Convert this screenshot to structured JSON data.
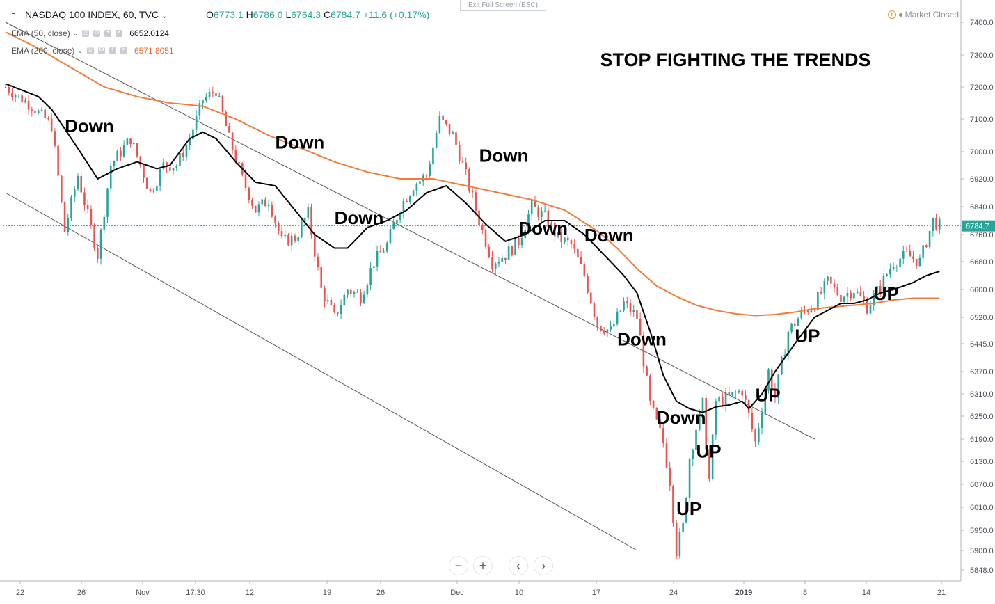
{
  "header": {
    "symbol": "NASDAQ 100 INDEX, 60, TVC",
    "open_label": "O",
    "open": "6773.1",
    "high_label": "H",
    "high": "6786.0",
    "low_label": "L",
    "low": "6764.3",
    "close_label": "C",
    "close": "6784.7",
    "change": "+11.6 (+0.17%)",
    "exit_fullscreen": "Exit Full Screen (ESC)",
    "market_status": "Market Closed"
  },
  "indicators": [
    {
      "label": "EMA (50, close)",
      "value": "6652.0124",
      "color": "#000000"
    },
    {
      "label": "EMA (200, close)",
      "value": "6571.8051",
      "color": "#f06a2e"
    }
  ],
  "colors": {
    "up": "#26a69a",
    "down": "#ef5350",
    "ema50": "#000000",
    "ema200": "#f47b3a",
    "price_line": "#26a69a"
  },
  "chart_data": {
    "type": "candlestick",
    "title": "STOP FIGHTING THE TRENDS",
    "y_ticks": [
      7400.0,
      7300.0,
      7200.0,
      7100.0,
      7000.0,
      6920.0,
      6840.0,
      6760.0,
      6680.0,
      6600.0,
      6520.0,
      6445.0,
      6370.0,
      6310.0,
      6250.0,
      6190.0,
      6130.0,
      6070.0,
      6010.0,
      5950.0,
      5900.0,
      5848.0
    ],
    "y_tick_labels": [
      "7400.0",
      "7300.0",
      "7200.0",
      "7100.0",
      "7000.0",
      "6920.0",
      "6840.0",
      "6760.0",
      "6680.0",
      "6600.0",
      "6520.0",
      "6445.0",
      "6370.0",
      "6310.0",
      "6250.0",
      "6190.0",
      "6130.0",
      "6070.0",
      "6010.0",
      "5950.0",
      "5900.0",
      "5848.0"
    ],
    "x_ticks": [
      {
        "label": "22",
        "bold": false
      },
      {
        "label": "26",
        "bold": false
      },
      {
        "label": "Nov",
        "bold": false
      },
      {
        "label": "17:30",
        "bold": false
      },
      {
        "label": "12",
        "bold": false
      },
      {
        "label": "19",
        "bold": false
      },
      {
        "label": "26",
        "bold": false
      },
      {
        "label": "Dec",
        "bold": false
      },
      {
        "label": "10",
        "bold": false
      },
      {
        "label": "17",
        "bold": false
      },
      {
        "label": "24",
        "bold": false
      },
      {
        "label": "2019",
        "bold": true
      },
      {
        "label": "8",
        "bold": false
      },
      {
        "label": "14",
        "bold": false
      },
      {
        "label": "21",
        "bold": false
      }
    ],
    "last_price": 6784.7,
    "last_price_label": "6784.7",
    "close_path": [
      [
        0,
        7200
      ],
      [
        8,
        7140
      ],
      [
        14,
        7080
      ],
      [
        18,
        6770
      ],
      [
        22,
        6930
      ],
      [
        28,
        6700
      ],
      [
        32,
        6960
      ],
      [
        38,
        7040
      ],
      [
        44,
        6880
      ],
      [
        48,
        6960
      ],
      [
        52,
        6960
      ],
      [
        56,
        7040
      ],
      [
        60,
        7160
      ],
      [
        64,
        7190
      ],
      [
        68,
        7040
      ],
      [
        72,
        6920
      ],
      [
        76,
        6830
      ],
      [
        80,
        6860
      ],
      [
        84,
        6740
      ],
      [
        88,
        6750
      ],
      [
        92,
        6820
      ],
      [
        96,
        6600
      ],
      [
        100,
        6520
      ],
      [
        104,
        6600
      ],
      [
        108,
        6580
      ],
      [
        112,
        6680
      ],
      [
        116,
        6730
      ],
      [
        120,
        6840
      ],
      [
        124,
        6900
      ],
      [
        128,
        6930
      ],
      [
        132,
        7100
      ],
      [
        136,
        7050
      ],
      [
        140,
        6930
      ],
      [
        144,
        6800
      ],
      [
        148,
        6680
      ],
      [
        152,
        6700
      ],
      [
        156,
        6740
      ],
      [
        160,
        6840
      ],
      [
        164,
        6810
      ],
      [
        168,
        6750
      ],
      [
        172,
        6730
      ],
      [
        176,
        6640
      ],
      [
        180,
        6500
      ],
      [
        184,
        6480
      ],
      [
        188,
        6560
      ],
      [
        192,
        6520
      ],
      [
        196,
        6280
      ],
      [
        200,
        6180
      ],
      [
        202,
        6080
      ],
      [
        204,
        5900
      ],
      [
        206,
        5960
      ],
      [
        208,
        6140
      ],
      [
        210,
        6220
      ],
      [
        212,
        6280
      ],
      [
        214,
        6080
      ],
      [
        216,
        6290
      ],
      [
        220,
        6300
      ],
      [
        224,
        6320
      ],
      [
        228,
        6180
      ],
      [
        232,
        6370
      ],
      [
        234,
        6300
      ],
      [
        238,
        6480
      ],
      [
        242,
        6530
      ],
      [
        246,
        6560
      ],
      [
        250,
        6620
      ],
      [
        254,
        6580
      ],
      [
        258,
        6600
      ],
      [
        262,
        6550
      ],
      [
        266,
        6610
      ],
      [
        270,
        6680
      ],
      [
        274,
        6700
      ],
      [
        278,
        6680
      ],
      [
        282,
        6800
      ],
      [
        284,
        6785
      ]
    ],
    "ema50_path": [
      [
        0,
        7210
      ],
      [
        10,
        7170
      ],
      [
        14,
        7130
      ],
      [
        20,
        7040
      ],
      [
        28,
        6920
      ],
      [
        34,
        6950
      ],
      [
        40,
        6970
      ],
      [
        46,
        6950
      ],
      [
        50,
        6960
      ],
      [
        56,
        7040
      ],
      [
        60,
        7060
      ],
      [
        64,
        7040
      ],
      [
        70,
        6970
      ],
      [
        76,
        6910
      ],
      [
        82,
        6900
      ],
      [
        88,
        6830
      ],
      [
        94,
        6760
      ],
      [
        100,
        6720
      ],
      [
        104,
        6720
      ],
      [
        110,
        6780
      ],
      [
        116,
        6800
      ],
      [
        122,
        6830
      ],
      [
        128,
        6880
      ],
      [
        134,
        6900
      ],
      [
        140,
        6850
      ],
      [
        146,
        6790
      ],
      [
        152,
        6740
      ],
      [
        158,
        6760
      ],
      [
        164,
        6800
      ],
      [
        170,
        6800
      ],
      [
        176,
        6760
      ],
      [
        182,
        6700
      ],
      [
        188,
        6640
      ],
      [
        192,
        6590
      ],
      [
        196,
        6480
      ],
      [
        200,
        6360
      ],
      [
        204,
        6290
      ],
      [
        208,
        6270
      ],
      [
        212,
        6260
      ],
      [
        216,
        6275
      ],
      [
        220,
        6280
      ],
      [
        224,
        6290
      ],
      [
        226,
        6270
      ],
      [
        230,
        6310
      ],
      [
        234,
        6370
      ],
      [
        238,
        6420
      ],
      [
        242,
        6470
      ],
      [
        246,
        6520
      ],
      [
        250,
        6540
      ],
      [
        254,
        6560
      ],
      [
        258,
        6560
      ],
      [
        262,
        6570
      ],
      [
        266,
        6590
      ],
      [
        270,
        6600
      ],
      [
        276,
        6620
      ],
      [
        280,
        6640
      ],
      [
        284,
        6652
      ]
    ],
    "ema200_path": [
      [
        0,
        7370
      ],
      [
        10,
        7320
      ],
      [
        20,
        7260
      ],
      [
        30,
        7200
      ],
      [
        40,
        7170
      ],
      [
        50,
        7150
      ],
      [
        60,
        7140
      ],
      [
        70,
        7100
      ],
      [
        80,
        7050
      ],
      [
        90,
        7010
      ],
      [
        100,
        6970
      ],
      [
        110,
        6940
      ],
      [
        120,
        6920
      ],
      [
        130,
        6920
      ],
      [
        140,
        6900
      ],
      [
        150,
        6880
      ],
      [
        160,
        6860
      ],
      [
        170,
        6830
      ],
      [
        180,
        6770
      ],
      [
        186,
        6720
      ],
      [
        192,
        6660
      ],
      [
        198,
        6610
      ],
      [
        204,
        6580
      ],
      [
        210,
        6555
      ],
      [
        216,
        6540
      ],
      [
        222,
        6530
      ],
      [
        228,
        6525
      ],
      [
        234,
        6528
      ],
      [
        240,
        6535
      ],
      [
        246,
        6545
      ],
      [
        252,
        6550
      ],
      [
        258,
        6555
      ],
      [
        264,
        6560
      ],
      [
        270,
        6570
      ],
      [
        276,
        6575
      ],
      [
        284,
        6575
      ]
    ],
    "trendlines": [
      {
        "from": [
          0,
          7400
        ],
        "to": [
          246,
          6190
        ]
      },
      {
        "from": [
          0,
          6880
        ],
        "to": [
          192,
          5900
        ]
      }
    ],
    "annotations": [
      {
        "text": "Down",
        "bar": 18,
        "price": 7060
      },
      {
        "text": "Down",
        "bar": 82,
        "price": 7010
      },
      {
        "text": "Down",
        "bar": 100,
        "price": 6790
      },
      {
        "text": "Down",
        "bar": 144,
        "price": 6970
      },
      {
        "text": "Down",
        "bar": 156,
        "price": 6760
      },
      {
        "text": "Down",
        "bar": 176,
        "price": 6740
      },
      {
        "text": "Down",
        "bar": 186,
        "price": 6440
      },
      {
        "text": "Down",
        "bar": 198,
        "price": 6230
      },
      {
        "text": "UP",
        "bar": 210,
        "price": 6140
      },
      {
        "text": "UP",
        "bar": 204,
        "price": 5990
      },
      {
        "text": "UP",
        "bar": 228,
        "price": 6290
      },
      {
        "text": "UP",
        "bar": 240,
        "price": 6450
      },
      {
        "text": "UP",
        "bar": 264,
        "price": 6570
      }
    ]
  }
}
